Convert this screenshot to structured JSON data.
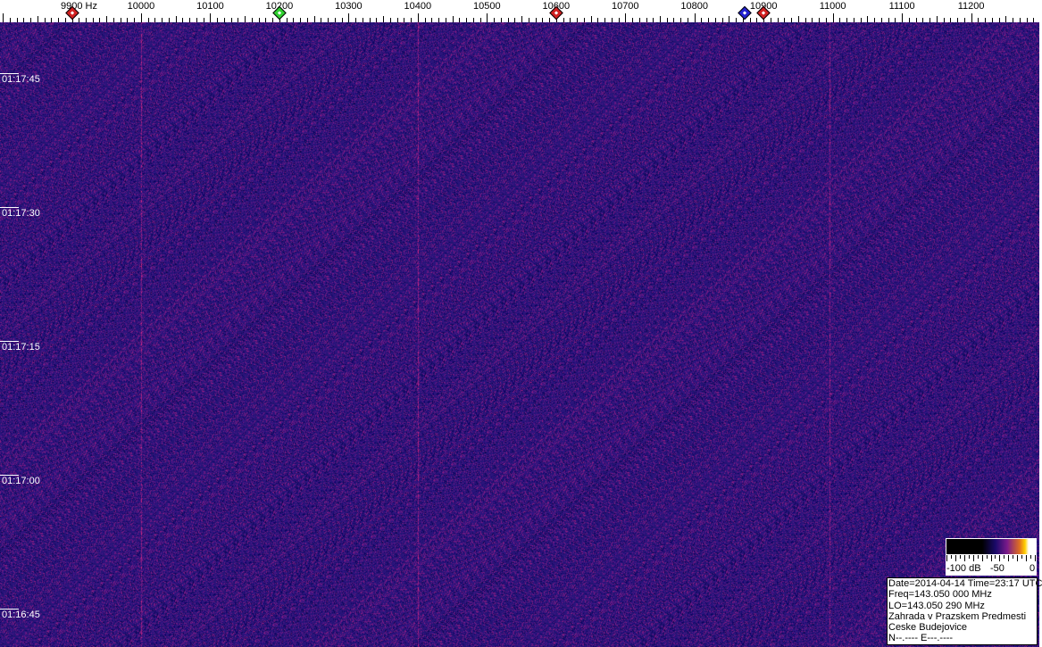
{
  "chart_data": {
    "type": "heatmap",
    "x_axis": {
      "unit": "Hz",
      "range": [
        9795,
        11300
      ],
      "ticks": [
        9900,
        10000,
        10100,
        10200,
        10300,
        10400,
        10500,
        10600,
        10700,
        10800,
        10900,
        11000,
        11100,
        11200
      ],
      "first_label": "9900 Hz"
    },
    "y_axis": {
      "time_labels": [
        "01:17:45",
        "01:17:30",
        "01:17:15",
        "01:17:00",
        "01:16:45"
      ]
    },
    "markers": [
      {
        "freq": 9900,
        "color": "#d02020"
      },
      {
        "freq": 10200,
        "color": "#30d030"
      },
      {
        "freq": 10600,
        "color": "#d02020"
      },
      {
        "freq": 10873,
        "color": "#2020d0"
      },
      {
        "freq": 10900,
        "color": "#d02020"
      }
    ],
    "faint_lines_hz": [
      10000,
      10400,
      10995
    ],
    "colorbar": {
      "labels": [
        "-100 dB",
        "-50",
        "0"
      ],
      "range_db": [
        -100,
        0
      ]
    },
    "background_color": "#22157a"
  },
  "info": {
    "lines": [
      "Date=2014-04-14 Time=23:17 UTC",
      "Freq=143.050 000 MHz",
      "LO=143.050 290 MHz",
      "Zahrada v Prazskem Predmesti",
      "Ceske Budejovice",
      "N--.---- E---.----"
    ]
  }
}
